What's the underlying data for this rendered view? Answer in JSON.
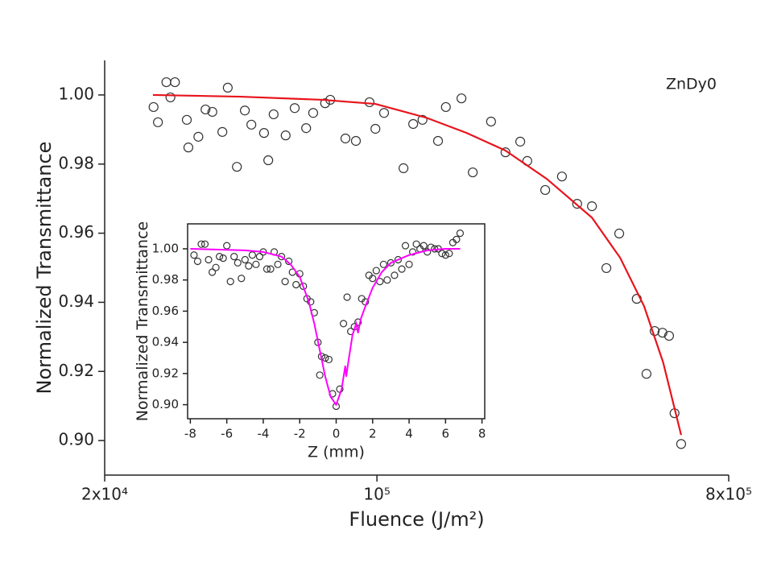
{
  "chart_data": [
    {
      "type": "scatter",
      "x_label": "Fluence (J/m²)",
      "y_label": "Normalized Transmittance",
      "annotation": "ZnDy0",
      "xscale": "log",
      "xlim": [
        20000,
        800000
      ],
      "xticks": [
        {
          "value": 20000,
          "label": "2x10⁴"
        },
        {
          "value": 100000,
          "label": "10⁵"
        },
        {
          "value": 800000,
          "label": "8x10⁵"
        }
      ],
      "ylim": [
        0.89,
        1.01
      ],
      "yticks": [
        {
          "value": 0.9,
          "label": "0.90"
        },
        0.92,
        0.94,
        0.96,
        0.98,
        {
          "value": 1.0,
          "label": "1.00"
        }
      ],
      "series": [
        {
          "kind": "scatter",
          "color": "#333333",
          "x": [
            26700,
            27400,
            28800,
            30300,
            29500,
            32500,
            32800,
            34800,
            36300,
            37800,
            40100,
            41400,
            43700,
            45800,
            47600,
            51300,
            52600,
            54300,
            58300,
            61500,
            65800,
            68600,
            73600,
            75900,
            83000,
            88300,
            95700,
            99100,
            104300,
            117000,
            123900,
            130900,
            143500,
            150300,
            164800,
            176200,
            196300,
            213800,
            233300,
            243200,
            270400,
            298500,
            326600,
            356400,
            388200,
            418800,
            464500,
            492000,
            516400,
            540800,
            562300,
            580800,
            603900
          ],
          "values": [
            0.9965,
            0.9921,
            1.0037,
            1.0037,
            0.9993,
            0.9928,
            0.9848,
            0.9879,
            0.9958,
            0.9951,
            0.9893,
            1.0021,
            0.9792,
            0.9955,
            0.9914,
            0.989,
            0.9811,
            0.9944,
            0.9883,
            0.9962,
            0.9904,
            0.9948,
            0.9976,
            0.9986,
            0.9874,
            0.9867,
            0.9979,
            0.9902,
            0.9948,
            0.9788,
            0.9916,
            0.9928,
            0.9867,
            0.9965,
            0.999,
            0.9776,
            0.9923,
            0.9834,
            0.9865,
            0.9809,
            0.9725,
            0.9764,
            0.9685,
            0.9678,
            0.9499,
            0.9599,
            0.941,
            0.9193,
            0.9317,
            0.9312,
            0.9303,
            0.9079,
            0.899
          ]
        },
        {
          "kind": "line",
          "color": "#e8141c",
          "x": [
            26600,
            44700,
            72400,
            99100,
            134000,
            170000,
            213800,
            273000,
            356400,
            421000,
            485000,
            543000,
            603900
          ],
          "values": [
            1.0,
            0.9995,
            0.9986,
            0.9974,
            0.9934,
            0.989,
            0.9839,
            0.9757,
            0.9645,
            0.9529,
            0.9389,
            0.9226,
            0.9016
          ]
        }
      ]
    },
    {
      "type": "scatter",
      "x_label": "Z (mm)",
      "y_label": "Normalized Transmittance",
      "xlim": [
        -8.15,
        8.15
      ],
      "xticks": [
        -8,
        -6,
        -4,
        -2,
        0,
        2,
        4,
        6,
        8
      ],
      "ylim": [
        0.891,
        1.016
      ],
      "yticks": [
        {
          "value": 0.9,
          "label": "0.90"
        },
        0.92,
        0.94,
        0.96,
        0.98,
        {
          "value": 1.0,
          "label": "1.00"
        }
      ],
      "series": [
        {
          "kind": "scatter",
          "color": "#333333",
          "x": [
            -7.8,
            -7.6,
            -7.4,
            -7.2,
            -7.0,
            -6.8,
            -6.6,
            -6.4,
            -6.2,
            -6.0,
            -5.8,
            -5.6,
            -5.4,
            -5.2,
            -5.0,
            -4.8,
            -4.6,
            -4.4,
            -4.2,
            -4.0,
            -3.8,
            -3.6,
            -3.4,
            -3.2,
            -3.0,
            -2.8,
            -2.6,
            -2.4,
            -2.2,
            -2.0,
            -1.8,
            -1.6,
            -1.4,
            -1.2,
            -1.0,
            -0.8,
            -0.6,
            -0.4,
            -0.9,
            -0.2,
            0,
            0.2,
            0.4,
            0.6,
            0.8,
            1.0,
            1.2,
            1.4,
            1.6,
            1.8,
            2.0,
            2.2,
            2.4,
            2.6,
            2.8,
            3.0,
            3.2,
            3.4,
            3.6,
            3.8,
            4.0,
            4.2,
            4.4,
            4.6,
            4.8,
            5.0,
            5.2,
            5.4,
            5.6,
            5.8,
            6.0,
            6.2,
            6.4,
            6.6,
            6.8
          ],
          "values": [
            0.996,
            0.992,
            1.003,
            1.003,
            0.993,
            0.985,
            0.988,
            0.995,
            0.994,
            1.002,
            0.979,
            0.995,
            0.991,
            0.981,
            0.993,
            0.989,
            0.996,
            0.99,
            0.995,
            0.998,
            0.987,
            0.987,
            0.998,
            0.99,
            0.995,
            0.979,
            0.992,
            0.985,
            0.977,
            0.984,
            0.976,
            0.968,
            0.966,
            0.959,
            0.94,
            0.931,
            0.93,
            0.929,
            0.919,
            0.907,
            0.899,
            0.91,
            0.952,
            0.969,
            0.947,
            0.95,
            0.953,
            0.968,
            0.966,
            0.983,
            0.981,
            0.986,
            0.979,
            0.99,
            0.98,
            0.991,
            0.983,
            0.993,
            0.987,
            1.002,
            0.99,
            0.998,
            1.003,
            1.0,
            1.002,
            0.998,
            1.001,
            1.0,
            1.0,
            0.997,
            0.996,
            0.997,
            1.004,
            1.006,
            1.01
          ]
        },
        {
          "kind": "line",
          "color": "#ff00ff",
          "x": [
            -8,
            -5,
            -4,
            -3,
            -2.5,
            -2,
            -1.5,
            -1.2,
            -0.9,
            -0.6,
            -0.3,
            0,
            0.3,
            0.5,
            0.55,
            0.7,
            0.9,
            1.1,
            1.2,
            1.35,
            1.6,
            2,
            2.5,
            3,
            4,
            5,
            6,
            6.8
          ],
          "values": [
            1.0,
            0.999,
            0.998,
            0.995,
            0.99,
            0.982,
            0.966,
            0.952,
            0.935,
            0.918,
            0.905,
            0.9,
            0.91,
            0.925,
            0.918,
            0.93,
            0.945,
            0.952,
            0.946,
            0.955,
            0.963,
            0.975,
            0.985,
            0.991,
            0.996,
            0.999,
            1.0,
            1.0
          ]
        }
      ]
    }
  ]
}
